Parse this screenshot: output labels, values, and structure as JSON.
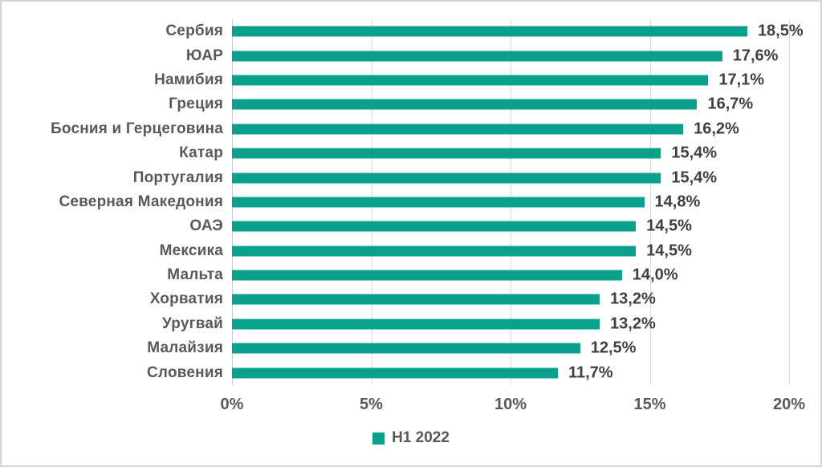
{
  "colors": {
    "bar": "#0aa18c",
    "category_text": "#595959",
    "data_label_text": "#404040",
    "axis_text": "#595959",
    "gridline": "#d9d9d9",
    "zero_line": "#cfcfcf",
    "frame_border": "#d3d6d8"
  },
  "legend": {
    "items": [
      {
        "label": "H1 2022",
        "color": "#0aa18c"
      }
    ]
  },
  "chart_data": {
    "type": "bar",
    "orientation": "horizontal",
    "title": "",
    "xlabel": "",
    "ylabel": "",
    "xlim": [
      0,
      20
    ],
    "grid": "vertical-major",
    "legend_position": "bottom",
    "x_ticks": [
      {
        "value": 0,
        "label": "0%"
      },
      {
        "value": 5,
        "label": "5%"
      },
      {
        "value": 10,
        "label": "10%"
      },
      {
        "value": 15,
        "label": "15%"
      },
      {
        "value": 20,
        "label": "20%"
      }
    ],
    "series": [
      {
        "name": "H1 2022",
        "color": "#0aa18c",
        "points": [
          {
            "category": "Сербия",
            "value": 18.5,
            "label": "18,5%"
          },
          {
            "category": "ЮАР",
            "value": 17.6,
            "label": "17,6%"
          },
          {
            "category": "Намибия",
            "value": 17.1,
            "label": "17,1%"
          },
          {
            "category": "Греция",
            "value": 16.7,
            "label": "16,7%"
          },
          {
            "category": "Босния и Герцеговина",
            "value": 16.2,
            "label": "16,2%"
          },
          {
            "category": "Катар",
            "value": 15.4,
            "label": "15,4%"
          },
          {
            "category": "Португалия",
            "value": 15.4,
            "label": "15,4%"
          },
          {
            "category": "Северная Македония",
            "value": 14.8,
            "label": "14,8%"
          },
          {
            "category": "ОАЭ",
            "value": 14.5,
            "label": "14,5%"
          },
          {
            "category": "Мексика",
            "value": 14.5,
            "label": "14,5%"
          },
          {
            "category": "Мальта",
            "value": 14.0,
            "label": "14,0%"
          },
          {
            "category": "Хорватия",
            "value": 13.2,
            "label": "13,2%"
          },
          {
            "category": "Уругвай",
            "value": 13.2,
            "label": "13,2%"
          },
          {
            "category": "Малайзия",
            "value": 12.5,
            "label": "12,5%"
          },
          {
            "category": "Словения",
            "value": 11.7,
            "label": "11,7%"
          }
        ]
      }
    ]
  }
}
